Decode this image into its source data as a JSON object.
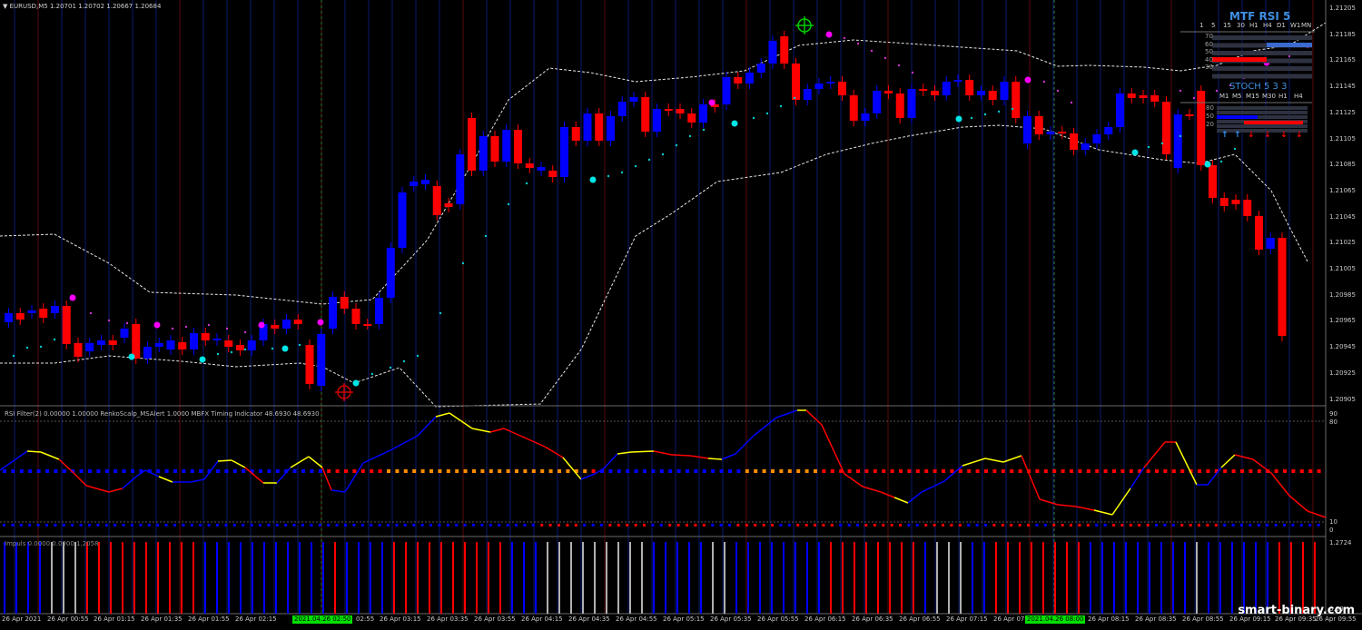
{
  "symbol_header": {
    "symbol": "EURUSD,M5",
    "ohlc": "1.20701 1.20702 1.20667 1.20684"
  },
  "price_axis": [
    "1.21205",
    "1.21185",
    "1.21165",
    "1.21145",
    "1.21125",
    "1.21105",
    "1.21085",
    "1.21065",
    "1.21045",
    "1.21025",
    "1.21005",
    "1.20985",
    "1.20965",
    "1.20945",
    "1.20925",
    "1.20905"
  ],
  "indicator1": {
    "header": "RSI Filter(2) 0.00000 1.00000  RenkoScalp_MSAlert 1.0000  MBFX Timing Indicator 48.6930 48.6930",
    "axis": [
      "90",
      "80",
      "10",
      "0"
    ]
  },
  "indicator2": {
    "header": "Impuls 0.0000 0.0000 1.2058",
    "axis": [
      "1.2724",
      "0.00"
    ]
  },
  "time_axis": [
    "26 Apr 2021",
    "26 Apr 00:55",
    "26 Apr 01:15",
    "26 Apr 01:35",
    "26 Apr 01:55",
    "26 Apr 02:15",
    "2021.04.26 02:50",
    "02:55",
    "26 Apr 03:15",
    "26 Apr 03:35",
    "26 Apr 03:55",
    "26 Apr 04:15",
    "26 Apr 04:35",
    "26 Apr 04:55",
    "26 Apr 05:15",
    "26 Apr 05:35",
    "26 Apr 05:55",
    "26 Apr 06:15",
    "26 Apr 06:35",
    "26 Apr 06:55",
    "26 Apr 07:15",
    "26 Apr 07:",
    "2021.04.26 08:00",
    "26 Apr 08:15",
    "26 Apr 08:35",
    "26 Apr 08:55",
    "26 Apr 09:15",
    "26 Apr 09:35",
    "26 Apr 09:55"
  ],
  "mtf_rsi": {
    "title": "MTF RSI  5",
    "timeframes": [
      "1",
      "5",
      "15",
      "30",
      "H1",
      "H4",
      "D1",
      "W1",
      "MN"
    ],
    "levels": [
      "70",
      "60",
      "50",
      "40",
      "30"
    ]
  },
  "stoch": {
    "title": "STOCH 5 3 3",
    "timeframes": [
      "M1",
      "M5",
      "M15",
      "M30",
      "H1",
      "H4"
    ],
    "levels": [
      "80",
      "50",
      "20"
    ],
    "arrows": [
      "↑",
      "↑",
      "↓",
      "↓",
      "↓",
      "↓"
    ]
  },
  "watermark": "smart-binary.com",
  "colors": {
    "bull": "#0000ff",
    "bear": "#ff0000",
    "grid_blue": "#0a1a6e",
    "grid_red": "#5a0a0a",
    "axis_text": "#c8c8c8",
    "highlight": "#00e000"
  }
}
